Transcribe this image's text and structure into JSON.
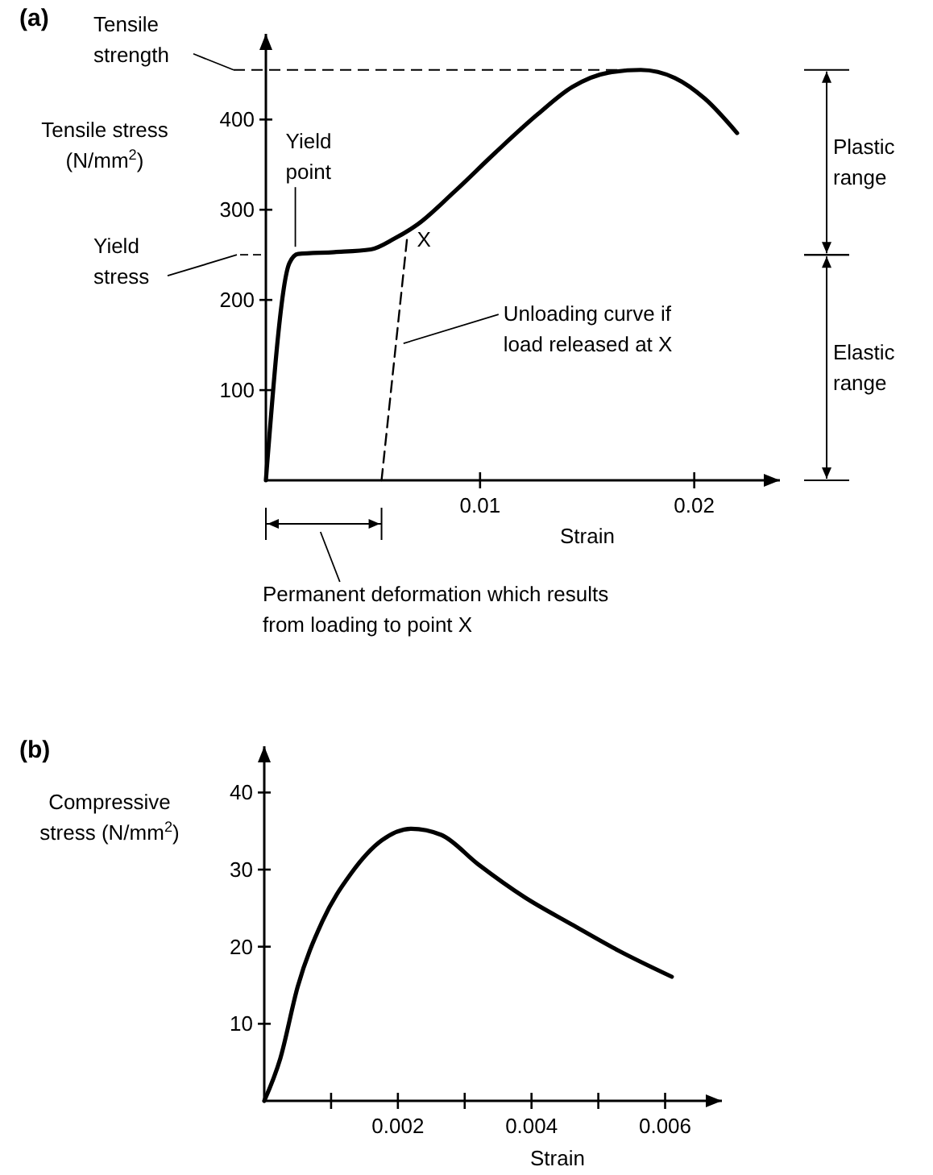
{
  "chart_data": [
    {
      "type": "line",
      "xlabel": "Strain",
      "ylabel": "Tensile stress\n(N/mm$^{2}$)",
      "xlim": [
        0,
        0.024
      ],
      "ylim": [
        0,
        495
      ],
      "xticks": [
        0.01,
        0.02
      ],
      "yticks": [
        100,
        200,
        300,
        400
      ],
      "grid": false,
      "marker": "none",
      "series": [
        {
          "color": "#000000",
          "line_style": "solid",
          "x": [
            0,
            0.0011,
            0.0015,
            0.0032,
            0.0049,
            0.006,
            0.0071,
            0.0088,
            0.0107,
            0.0127,
            0.0143,
            0.016,
            0.0175,
            0.0191,
            0.0205,
            0.022
          ],
          "values": [
            0,
            241,
            251,
            253,
            256,
            268,
            284,
            320,
            363,
            406,
            436,
            452,
            455,
            446,
            423,
            385
          ]
        },
        {
          "color": "#000000",
          "line_style": "dashed",
          "x": [
            0.0054,
            0.0066
          ],
          "values": [
            0,
            270
          ]
        }
      ],
      "ref_lines": [
        {
          "axis": "y",
          "value": 455,
          "label": "Tensile\nstrength",
          "line_style": "dashed"
        }
      ],
      "annotations": [
        "Plastic\nrange",
        "Elastic\nrange",
        "Permanent deformation which results\nfrom loading to point X",
        "Yield\nstress",
        {
          "text": "Yield\npoint",
          "x": 0.0013,
          "y": 250
        },
        {
          "text": "X",
          "x": 0.0066,
          "y": 270
        },
        {
          "text": "Unloading curve if\nload released at X",
          "x": 0.0062,
          "y": 150
        },
        "(a)"
      ]
    },
    {
      "type": "line",
      "annotations": [
        "(b)"
      ],
      "xlabel": "Strain",
      "ylabel": "Compressive\nstress (N/mm$^{2}$)",
      "xlim": [
        0,
        0.00685
      ],
      "ylim": [
        0,
        46
      ],
      "xticks": [
        {
          "value": 0.001,
          "label": null
        },
        0.002,
        {
          "value": 0.003,
          "label": null
        },
        0.004,
        {
          "value": 0.005,
          "label": null
        },
        0.006
      ],
      "yticks": [
        10,
        20,
        30,
        40
      ],
      "grid": false,
      "marker": "none",
      "series": [
        {
          "color": "#000000",
          "line_style": "solid",
          "x": [
            0,
            0.00024,
            0.0005,
            0.00087,
            0.0013,
            0.00176,
            0.0022,
            0.00265,
            0.0032,
            0.0039,
            0.0046,
            0.0053,
            0.0061
          ],
          "values": [
            0,
            5.5,
            14.8,
            23.3,
            29.5,
            33.8,
            35.3,
            34.5,
            30.7,
            26.4,
            22.9,
            19.5,
            16.1
          ]
        }
      ]
    }
  ]
}
